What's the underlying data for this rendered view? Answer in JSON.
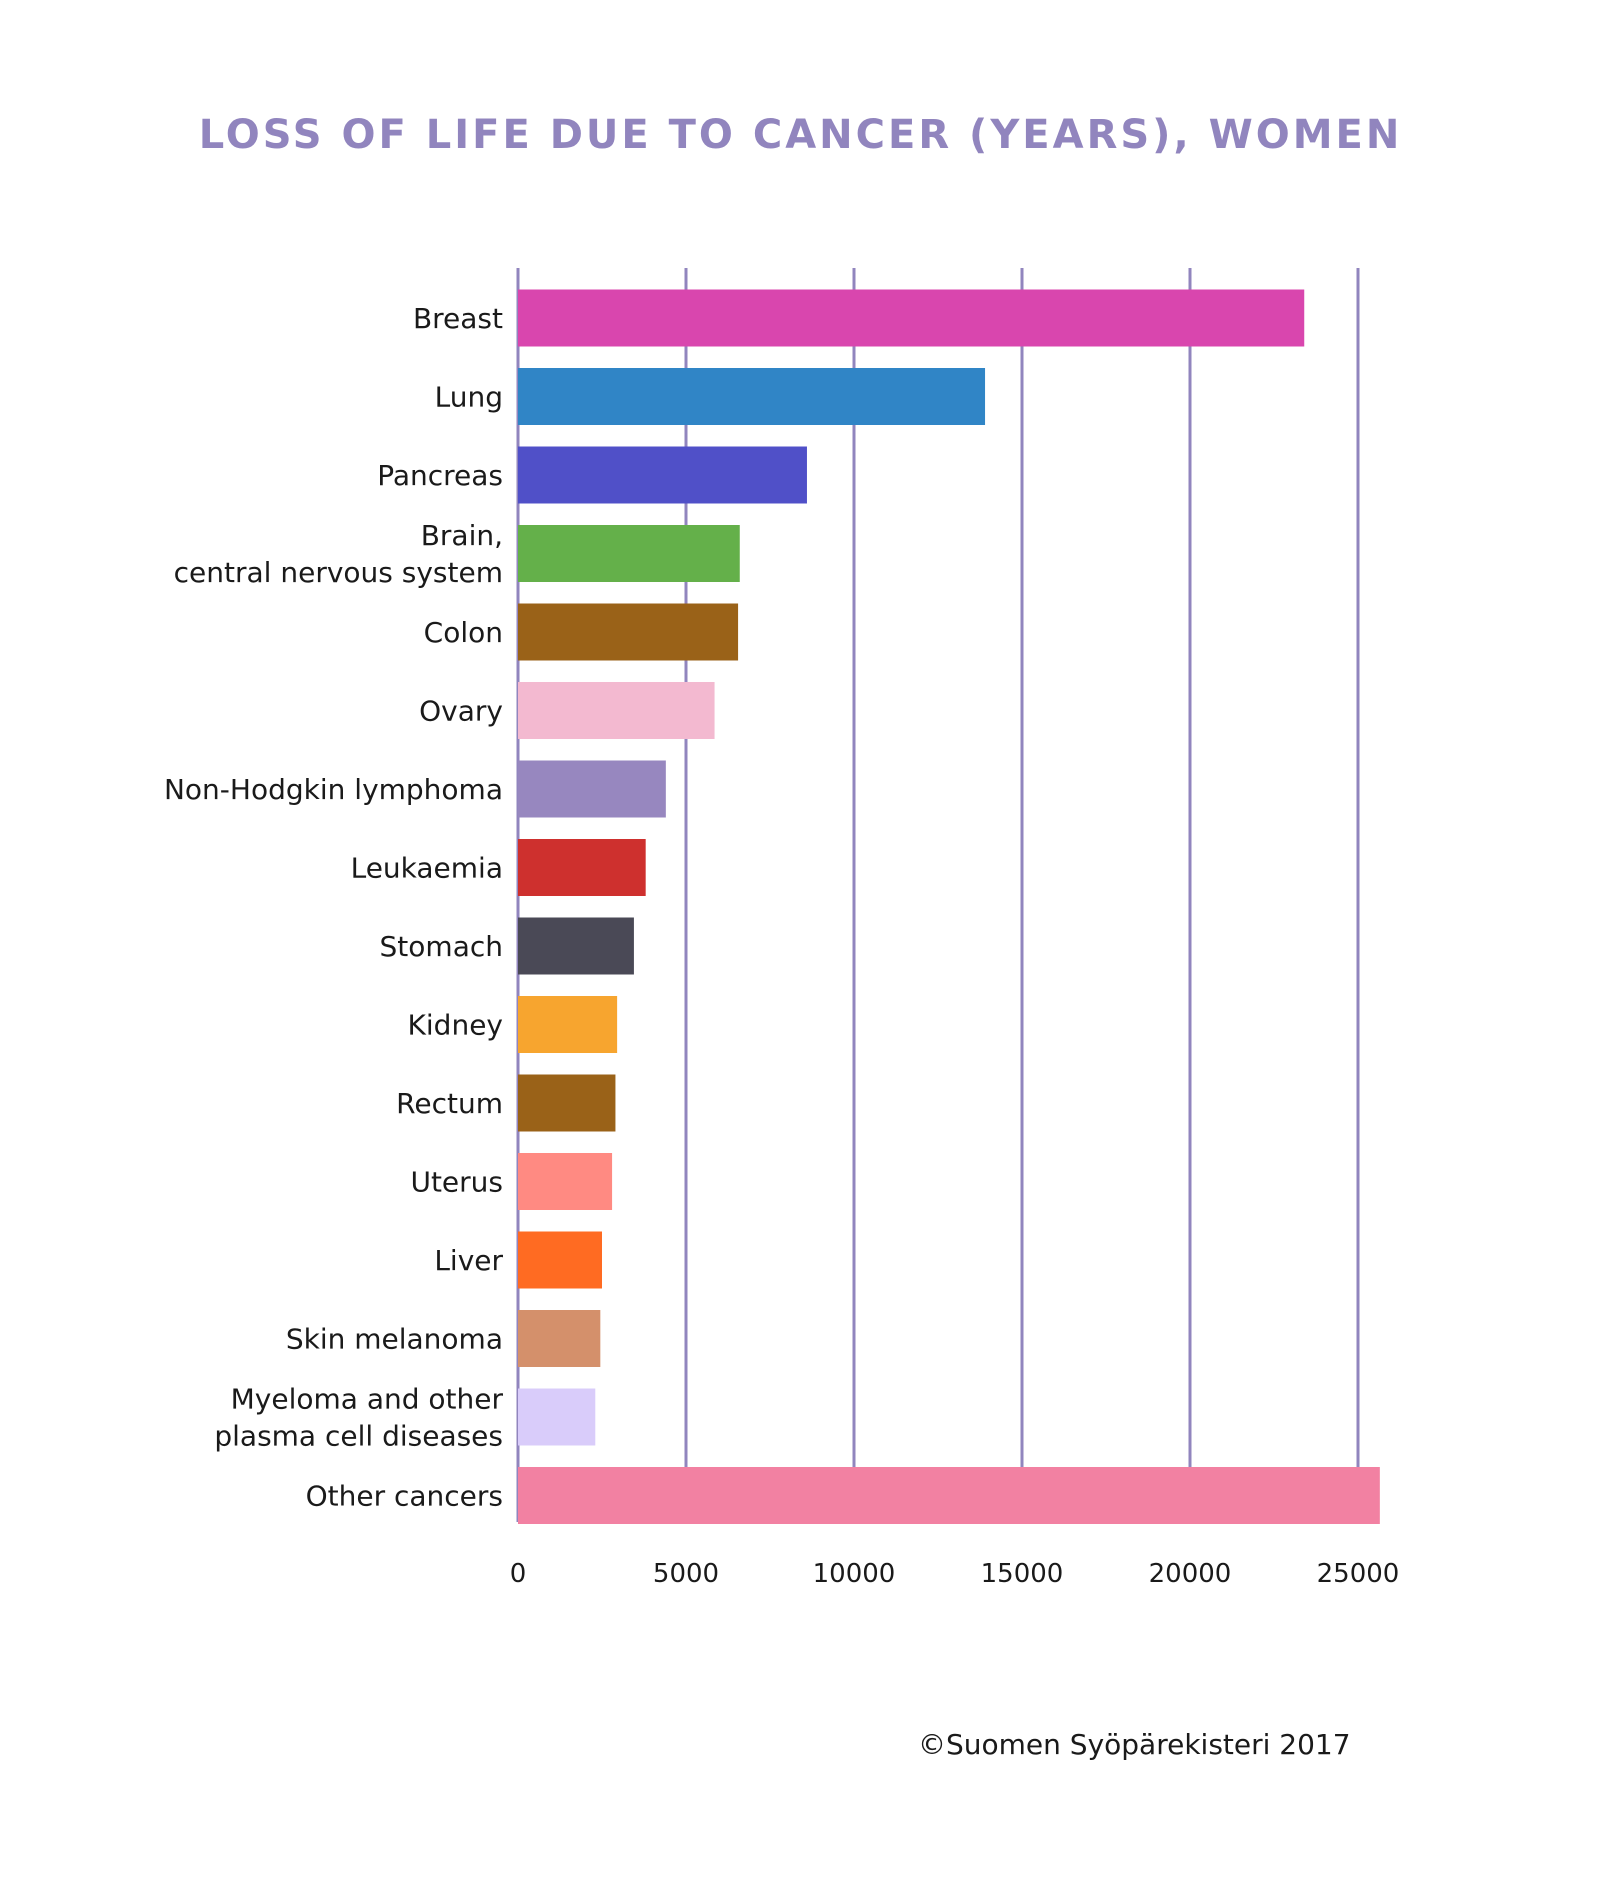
{
  "chart_data": {
    "type": "bar",
    "orientation": "horizontal",
    "title": "LOSS OF LIFE DUE TO CANCER (YEARS), WOMEN",
    "xlabel": "",
    "ylabel": "",
    "xlim": [
      0,
      25000
    ],
    "x_ticks": [
      "0",
      "5000",
      "10000",
      "15000",
      "20000",
      "25000"
    ],
    "grid": true,
    "categories": [
      [
        "Breast"
      ],
      [
        "Lung"
      ],
      [
        "Pancreas"
      ],
      [
        "Brain,",
        "central nervous system"
      ],
      [
        "Colon"
      ],
      [
        "Ovary"
      ],
      [
        "Non-Hodgkin lymphoma"
      ],
      [
        "Leukaemia"
      ],
      [
        "Stomach"
      ],
      [
        "Kidney"
      ],
      [
        "Rectum"
      ],
      [
        "Uterus"
      ],
      [
        "Liver"
      ],
      [
        "Skin melanoma"
      ],
      [
        "Myeloma and other",
        "plasma cell diseases"
      ],
      [
        "Other cancers"
      ]
    ],
    "values": [
      23400,
      13900,
      8600,
      6600,
      6550,
      5850,
      4400,
      3800,
      3450,
      2950,
      2900,
      2800,
      2500,
      2450,
      2300,
      25650
    ],
    "colors": [
      "#D946AE",
      "#3085C6",
      "#5050C8",
      "#64B04A",
      "#9A6218",
      "#F3B9D0",
      "#9787BF",
      "#CE302E",
      "#4A4956",
      "#F7A52F",
      "#9A6218",
      "#FF8A82",
      "#FF6B22",
      "#D4906B",
      "#D9CCFA",
      "#F281A2"
    ],
    "grid_color": "#9185BE"
  },
  "copyright": "©Suomen Syöpärekisteri 2017"
}
